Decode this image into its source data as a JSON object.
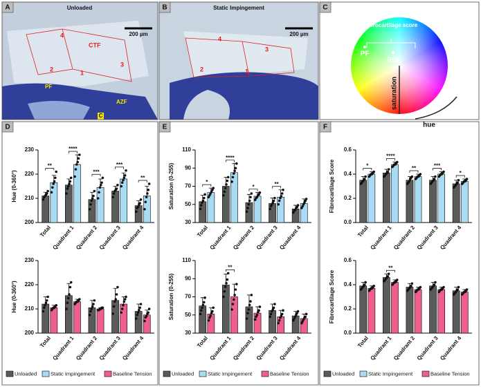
{
  "panels": {
    "letters": [
      "A",
      "B",
      "C",
      "D",
      "E",
      "F"
    ],
    "A": {
      "title": "Unloaded",
      "scale": "200 µm",
      "labels": [
        "4",
        "CTF",
        "3",
        "2",
        "1",
        "PF",
        "AZF",
        "C"
      ]
    },
    "B": {
      "title": "Static Impingement",
      "scale": "200 µm",
      "labels": [
        "4",
        "3",
        "2",
        "1"
      ]
    },
    "C": {
      "labels": [
        "Fibrocartilage score",
        "PF",
        "ROI",
        "saturation",
        "hue"
      ]
    }
  },
  "chart_data": [
    {
      "type": "bar",
      "ylabel": "Hue (0-360°)",
      "categories": [
        "Total",
        "Quadrant 1",
        "Quadrant 2",
        "Quadrant 3",
        "Quadrant 4"
      ],
      "ylim": [
        200,
        230
      ],
      "yticks": [
        200,
        210,
        220,
        230
      ],
      "significance": [
        "**",
        "****",
        "***",
        "***",
        "**"
      ],
      "series": [
        {
          "name": "Unloaded",
          "color": "#5b5b5b",
          "values": [
            211,
            215.5,
            209.5,
            213,
            207
          ],
          "errors": [
            1.5,
            2.5,
            3,
            2,
            2
          ],
          "points": [
            [
              209.5,
              210.5,
              211,
              211.5,
              212,
              213
            ],
            [
              212,
              214,
              215,
              216,
              217,
              218.5
            ],
            [
              205.5,
              207.5,
              209,
              210,
              211,
              213
            ],
            [
              210.5,
              212,
              213,
              213.5,
              214,
              215.5
            ],
            [
              204.5,
              206,
              206.5,
              207.5,
              208,
              209.5
            ]
          ]
        },
        {
          "name": "Static Impingement",
          "color": "#a9dcf4",
          "values": [
            216.5,
            224,
            214.5,
            218,
            211
          ],
          "errors": [
            3,
            4,
            3.5,
            2.5,
            4
          ],
          "points": [
            [
              212.5,
              214.5,
              216,
              217,
              218.5,
              221
            ],
            [
              219,
              222,
              224,
              225,
              226.5,
              228
            ],
            [
              210,
              212.5,
              214.5,
              215.5,
              216.5,
              218.5
            ],
            [
              215,
              216.5,
              217.5,
              218.5,
              219.5,
              221.5
            ],
            [
              205.5,
              208.5,
              210.5,
              212,
              213.5,
              216
            ]
          ]
        }
      ]
    },
    {
      "type": "bar",
      "ylabel": "Hue (0-360°)",
      "categories": [
        "Total",
        "Quadrant 1",
        "Quadrant 2",
        "Quadrant 3",
        "Quadrant 4"
      ],
      "ylim": [
        200,
        230
      ],
      "yticks": [
        200,
        210,
        220,
        230
      ],
      "series": [
        {
          "color": "#5b5b5b",
          "values": [
            212,
            215.5,
            210.5,
            213.5,
            209
          ],
          "errors": [
            3,
            5,
            3,
            5,
            3
          ],
          "points": [
            [
              209,
              210.5,
              211.5,
              212.5,
              213.5,
              215
            ],
            [
              210,
              212.5,
              214.5,
              216,
              219,
              221
            ],
            [
              207.5,
              209,
              210,
              211,
              212,
              213.5
            ],
            [
              208,
              211,
              213,
              214,
              216,
              219
            ],
            [
              206,
              207.5,
              208.5,
              209.5,
              210.5,
              212
            ]
          ]
        },
        {
          "name": "Baseline Tension",
          "color": "#ef5f8b",
          "values": [
            210.5,
            213,
            210,
            212,
            207.5
          ],
          "errors": [
            1,
            1,
            0.5,
            3,
            2
          ],
          "points": [
            [
              209.5,
              210,
              210.5,
              210.5,
              211,
              211.5
            ],
            [
              212,
              212.5,
              213,
              213,
              213.5,
              214
            ],
            [
              209.5,
              209.5,
              210,
              210,
              210.5,
              210.5
            ],
            [
              208.5,
              210,
              211.5,
              213,
              214,
              215
            ],
            [
              205,
              206.5,
              207,
              208,
              208.5,
              210
            ]
          ]
        }
      ]
    },
    {
      "type": "bar",
      "ylabel": "Saturation (0-255)",
      "categories": [
        "Total",
        "Quadrant 1",
        "Quadrant 2",
        "Quadrant 3",
        "Quadrant 4"
      ],
      "ylim": [
        30,
        110
      ],
      "yticks": [
        30,
        50,
        70,
        90,
        110
      ],
      "significance": [
        "*",
        "****",
        "*",
        "**",
        null
      ],
      "series": [
        {
          "name": "Unloaded",
          "color": "#5b5b5b",
          "values": [
            53,
            70,
            52,
            51,
            45
          ],
          "errors": [
            7,
            10,
            9,
            6,
            4
          ],
          "points": [
            [
              45,
              49,
              52,
              54,
              57,
              61
            ],
            [
              60,
              64,
              68,
              72,
              76,
              80
            ],
            [
              42,
              46,
              50,
              54,
              58,
              62
            ],
            [
              45,
              48,
              50,
              52,
              54,
              57
            ],
            [
              41,
              43,
              44,
              46,
              47,
              49
            ]
          ]
        },
        {
          "name": "Static Impingement",
          "color": "#a9dcf4",
          "values": [
            63,
            85,
            59,
            58,
            51
          ],
          "errors": [
            5,
            10,
            4,
            8,
            5
          ],
          "points": [
            [
              58,
              60,
              62,
              64,
              66,
              68
            ],
            [
              75,
              80,
              84,
              87,
              90,
              95
            ],
            [
              55,
              57,
              58,
              60,
              61,
              63
            ],
            [
              50,
              54,
              57,
              59,
              62,
              66
            ],
            [
              46,
              48,
              50,
              52,
              54,
              56
            ]
          ]
        }
      ]
    },
    {
      "type": "bar",
      "ylabel": "Saturation (0-255)",
      "categories": [
        "Total",
        "Quadrant 1",
        "Quadrant 2",
        "Quadrant 3",
        "Quadrant 4"
      ],
      "ylim": [
        30,
        110
      ],
      "yticks": [
        30,
        50,
        70,
        90,
        110
      ],
      "significance": [
        null,
        "**",
        null,
        null,
        null
      ],
      "series": [
        {
          "color": "#5b5b5b",
          "values": [
            60,
            83,
            59,
            55,
            49
          ],
          "errors": [
            9,
            12,
            13,
            7,
            5
          ],
          "points": [
            [
              51,
              55,
              58,
              61,
              64,
              69
            ],
            [
              70,
              76,
              81,
              85,
              89,
              96
            ],
            [
              46,
              52,
              56,
              61,
              65,
              72
            ],
            [
              48,
              51,
              54,
              56,
              58,
              62
            ],
            [
              44,
              46,
              48,
              50,
              52,
              54
            ]
          ]
        },
        {
          "name": "Baseline Tension",
          "color": "#ef5f8b",
          "values": [
            51,
            70,
            52,
            48,
            46
          ],
          "errors": [
            7,
            14,
            7,
            7,
            5
          ],
          "points": [
            [
              44,
              47,
              49,
              52,
              54,
              58
            ],
            [
              56,
              62,
              67,
              72,
              78,
              84
            ],
            [
              45,
              48,
              50,
              53,
              55,
              59
            ],
            [
              41,
              44,
              47,
              49,
              51,
              55
            ],
            [
              41,
              43,
              45,
              47,
              48,
              51
            ]
          ]
        }
      ]
    },
    {
      "type": "bar",
      "ylabel": "Fibrocartilage Score",
      "categories": [
        "Total",
        "Quadrant 1",
        "Quadrant 2",
        "Quadrant 3",
        "Quadrant 4"
      ],
      "ylim": [
        0,
        0.6
      ],
      "yticks": [
        {
          "value": 0,
          "label": "0.0"
        },
        0.2,
        0.4,
        0.6
      ],
      "significance": [
        "*",
        "****",
        "**",
        "***",
        "*"
      ],
      "series": [
        {
          "name": "Unloaded",
          "color": "#5b5b5b",
          "values": [
            0.35,
            0.41,
            0.35,
            0.35,
            0.32
          ],
          "errors": [
            0.03,
            0.03,
            0.03,
            0.03,
            0.03
          ],
          "points": [
            [
              0.32,
              0.33,
              0.34,
              0.35,
              0.36,
              0.38
            ],
            [
              0.38,
              0.39,
              0.4,
              0.41,
              0.42,
              0.44
            ],
            [
              0.32,
              0.33,
              0.34,
              0.36,
              0.37,
              0.38
            ],
            [
              0.32,
              0.33,
              0.34,
              0.35,
              0.36,
              0.38
            ],
            [
              0.29,
              0.3,
              0.31,
              0.32,
              0.33,
              0.35
            ]
          ]
        },
        {
          "name": "Static Impingement",
          "color": "#a9dcf4",
          "values": [
            0.4,
            0.48,
            0.38,
            0.4,
            0.34
          ],
          "errors": [
            0.02,
            0.02,
            0.02,
            0.02,
            0.02
          ],
          "points": [
            [
              0.38,
              0.39,
              0.4,
              0.4,
              0.41,
              0.42
            ],
            [
              0.46,
              0.47,
              0.48,
              0.48,
              0.49,
              0.5
            ],
            [
              0.36,
              0.37,
              0.38,
              0.38,
              0.39,
              0.4
            ],
            [
              0.38,
              0.39,
              0.4,
              0.4,
              0.41,
              0.42
            ],
            [
              0.32,
              0.33,
              0.34,
              0.34,
              0.35,
              0.36
            ]
          ]
        }
      ]
    },
    {
      "type": "bar",
      "ylabel": "Fibrocartilage Score",
      "categories": [
        "Total",
        "Quadrant 1",
        "Quadrant 2",
        "Quadrant 3",
        "Quadrant 4"
      ],
      "ylim": [
        0,
        0.6
      ],
      "yticks": [
        {
          "value": 0,
          "label": "0.0"
        },
        0.2,
        0.4,
        0.6
      ],
      "significance": [
        null,
        "**",
        null,
        null,
        null
      ],
      "series": [
        {
          "color": "#5b5b5b",
          "values": [
            0.39,
            0.46,
            0.38,
            0.39,
            0.35
          ],
          "errors": [
            0.03,
            0.03,
            0.03,
            0.03,
            0.03
          ],
          "points": [
            [
              0.36,
              0.37,
              0.38,
              0.39,
              0.4,
              0.42
            ],
            [
              0.43,
              0.44,
              0.45,
              0.46,
              0.47,
              0.49
            ],
            [
              0.35,
              0.36,
              0.37,
              0.38,
              0.39,
              0.41
            ],
            [
              0.36,
              0.37,
              0.38,
              0.39,
              0.4,
              0.42
            ],
            [
              0.32,
              0.33,
              0.34,
              0.35,
              0.36,
              0.38
            ]
          ]
        },
        {
          "name": "Baseline Tension",
          "color": "#ef5f8b",
          "values": [
            0.37,
            0.42,
            0.36,
            0.36,
            0.34
          ],
          "errors": [
            0.02,
            0.02,
            0.02,
            0.02,
            0.02
          ],
          "points": [
            [
              0.35,
              0.36,
              0.37,
              0.37,
              0.38,
              0.39
            ],
            [
              0.4,
              0.41,
              0.42,
              0.42,
              0.43,
              0.44
            ],
            [
              0.34,
              0.35,
              0.36,
              0.36,
              0.37,
              0.38
            ],
            [
              0.34,
              0.35,
              0.36,
              0.36,
              0.37,
              0.38
            ],
            [
              0.32,
              0.33,
              0.34,
              0.34,
              0.35,
              0.36
            ]
          ]
        }
      ]
    }
  ]
}
